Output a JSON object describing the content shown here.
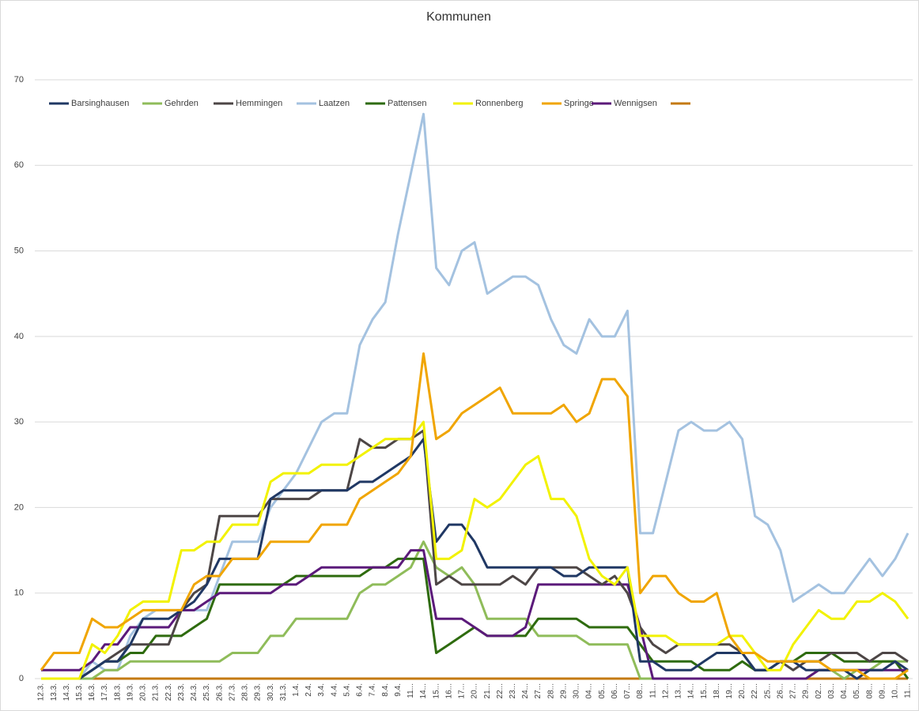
{
  "chart_data": {
    "type": "line",
    "title": "Kommunen",
    "categories": [
      "12.3.",
      "13.3.",
      "14.3.",
      "15.3.",
      "16.3.",
      "17.3.",
      "18.3.",
      "19.3.",
      "20.3.",
      "21.3.",
      "22.3.",
      "23.3.",
      "24.3.",
      "25.3.",
      "26.3.",
      "27.3.",
      "28.3.",
      "29.3.",
      "30.3.",
      "31.3.",
      "1.4.",
      "2.4.",
      "3.4.",
      "4.4.",
      "5.4.",
      "6.4.",
      "7.4.",
      "8.4.",
      "9.4.",
      "11...",
      "14...",
      "15...",
      "16...",
      "17...",
      "20...",
      "21...",
      "22...",
      "23...",
      "24...",
      "27...",
      "28...",
      "29...",
      "30...",
      "04...",
      "05...",
      "06...",
      "07...",
      "08...",
      "11...",
      "12...",
      "13...",
      "14...",
      "15...",
      "18...",
      "19...",
      "20...",
      "22...",
      "25...",
      "26...",
      "27...",
      "29...",
      "02...",
      "03...",
      "04...",
      "05...",
      "08...",
      "09...",
      "10...",
      "11..."
    ],
    "series": [
      {
        "name": "Barsinghausen",
        "color": "#203864",
        "values": [
          0,
          0,
          0,
          0,
          1,
          2,
          2,
          4,
          7,
          7,
          7,
          8,
          9,
          11,
          14,
          14,
          14,
          14,
          21,
          22,
          22,
          22,
          22,
          22,
          22,
          23,
          23,
          24,
          25,
          26,
          28,
          16,
          18,
          18,
          16,
          13,
          13,
          13,
          13,
          13,
          13,
          12,
          12,
          13,
          13,
          13,
          13,
          2,
          2,
          1,
          1,
          1,
          2,
          3,
          3,
          3,
          1,
          1,
          2,
          2,
          1,
          1,
          1,
          1,
          0,
          1,
          1,
          2,
          1
        ]
      },
      {
        "name": "Gehrden",
        "color": "#8fbc5a",
        "values": [
          0,
          0,
          0,
          0,
          0,
          1,
          1,
          2,
          2,
          2,
          2,
          2,
          2,
          2,
          2,
          3,
          3,
          3,
          5,
          5,
          7,
          7,
          7,
          7,
          7,
          10,
          11,
          11,
          12,
          13,
          16,
          13,
          12,
          13,
          11,
          7,
          7,
          7,
          7,
          5,
          5,
          5,
          5,
          4,
          4,
          4,
          4,
          0,
          0,
          0,
          0,
          0,
          0,
          0,
          0,
          0,
          0,
          0,
          0,
          0,
          0,
          1,
          1,
          0,
          1,
          1,
          2,
          2,
          2
        ]
      },
      {
        "name": "Hemmingen",
        "color": "#4d4646",
        "values": [
          0,
          0,
          0,
          0,
          1,
          2,
          3,
          4,
          4,
          4,
          4,
          8,
          10,
          11,
          19,
          19,
          19,
          19,
          21,
          21,
          21,
          21,
          22,
          22,
          22,
          28,
          27,
          27,
          28,
          28,
          29,
          11,
          12,
          11,
          11,
          11,
          11,
          12,
          11,
          13,
          13,
          13,
          13,
          12,
          11,
          12,
          10,
          6,
          4,
          3,
          4,
          4,
          4,
          4,
          4,
          3,
          1,
          1,
          2,
          1,
          2,
          2,
          3,
          3,
          3,
          2,
          3,
          3,
          2
        ]
      },
      {
        "name": "Laatzen",
        "color": "#a4c2e0",
        "values": [
          0,
          0,
          0,
          0,
          2,
          1,
          1,
          5,
          7,
          8,
          8,
          8,
          8,
          8,
          12,
          16,
          16,
          16,
          20,
          22,
          24,
          27,
          30,
          31,
          31,
          39,
          42,
          44,
          52,
          59,
          66,
          48,
          46,
          50,
          51,
          45,
          46,
          47,
          47,
          46,
          42,
          39,
          38,
          42,
          40,
          40,
          43,
          17,
          17,
          23,
          29,
          30,
          29,
          29,
          30,
          28,
          19,
          18,
          15,
          9,
          10,
          11,
          10,
          10,
          12,
          14,
          12,
          14,
          17
        ]
      },
      {
        "name": "Pattensen",
        "color": "#2e6b0e",
        "values": [
          0,
          0,
          0,
          0,
          1,
          2,
          2,
          3,
          3,
          5,
          5,
          5,
          6,
          7,
          11,
          11,
          11,
          11,
          11,
          11,
          12,
          12,
          12,
          12,
          12,
          12,
          13,
          13,
          14,
          14,
          14,
          3,
          4,
          5,
          6,
          5,
          5,
          5,
          5,
          7,
          7,
          7,
          7,
          6,
          6,
          6,
          6,
          4,
          2,
          2,
          2,
          2,
          1,
          1,
          1,
          2,
          1,
          1,
          2,
          2,
          3,
          3,
          3,
          2,
          2,
          2,
          2,
          2,
          0
        ]
      },
      {
        "name": "Ronnenberg",
        "color": "#f2f200",
        "values": [
          0,
          0,
          0,
          0,
          4,
          3,
          5,
          8,
          9,
          9,
          9,
          15,
          15,
          16,
          16,
          18,
          18,
          18,
          23,
          24,
          24,
          24,
          25,
          25,
          25,
          26,
          27,
          28,
          28,
          28,
          30,
          14,
          14,
          15,
          21,
          20,
          21,
          23,
          25,
          26,
          21,
          21,
          19,
          14,
          12,
          11,
          13,
          5,
          5,
          5,
          4,
          4,
          4,
          4,
          5,
          5,
          3,
          1,
          1,
          4,
          6,
          8,
          7,
          7,
          9,
          9,
          10,
          9,
          7
        ]
      },
      {
        "name": "Springe",
        "color": "#f0a500",
        "values": [
          1,
          3,
          3,
          3,
          7,
          6,
          6,
          7,
          8,
          8,
          8,
          8,
          11,
          12,
          12,
          14,
          14,
          14,
          16,
          16,
          16,
          16,
          18,
          18,
          18,
          21,
          22,
          23,
          24,
          26,
          38,
          28,
          29,
          31,
          32,
          33,
          34,
          31,
          31,
          31,
          31,
          32,
          30,
          31,
          35,
          35,
          33,
          10,
          12,
          12,
          10,
          9,
          9,
          10,
          5,
          3,
          3,
          2,
          2,
          2,
          2,
          2,
          1,
          1,
          1,
          0,
          0,
          0,
          1
        ]
      },
      {
        "name": "Wennigsen",
        "color": "#5b1a7a",
        "values": [
          1,
          1,
          1,
          1,
          2,
          4,
          4,
          6,
          6,
          6,
          6,
          8,
          8,
          9,
          10,
          10,
          10,
          10,
          10,
          11,
          11,
          12,
          13,
          13,
          13,
          13,
          13,
          13,
          13,
          15,
          15,
          7,
          7,
          7,
          6,
          5,
          5,
          5,
          6,
          11,
          11,
          11,
          11,
          11,
          11,
          11,
          11,
          6,
          0,
          0,
          0,
          0,
          0,
          0,
          0,
          0,
          0,
          0,
          0,
          0,
          0,
          1,
          1,
          1,
          1,
          1,
          1,
          1,
          1
        ]
      },
      {
        "color": "#c47a12",
        "values": [
          0,
          0,
          0,
          0,
          0,
          0,
          0,
          0,
          0,
          0,
          0,
          0,
          0,
          0,
          0,
          0,
          0,
          0,
          0,
          0,
          0,
          0,
          0,
          0,
          0,
          0,
          0,
          0,
          0,
          0,
          0,
          0,
          0,
          0,
          0,
          0,
          0,
          0,
          0,
          0,
          0,
          0,
          0,
          0,
          0,
          0,
          0,
          0,
          0,
          0,
          0,
          0,
          0,
          0,
          0,
          0,
          0,
          0,
          0,
          0,
          0,
          0,
          0,
          0,
          0,
          0,
          0,
          0,
          0
        ]
      }
    ],
    "ylim": [
      0,
      70
    ],
    "yticks": [
      0,
      10,
      20,
      30,
      40,
      50,
      60,
      70
    ],
    "grid": true,
    "legend": "top"
  }
}
